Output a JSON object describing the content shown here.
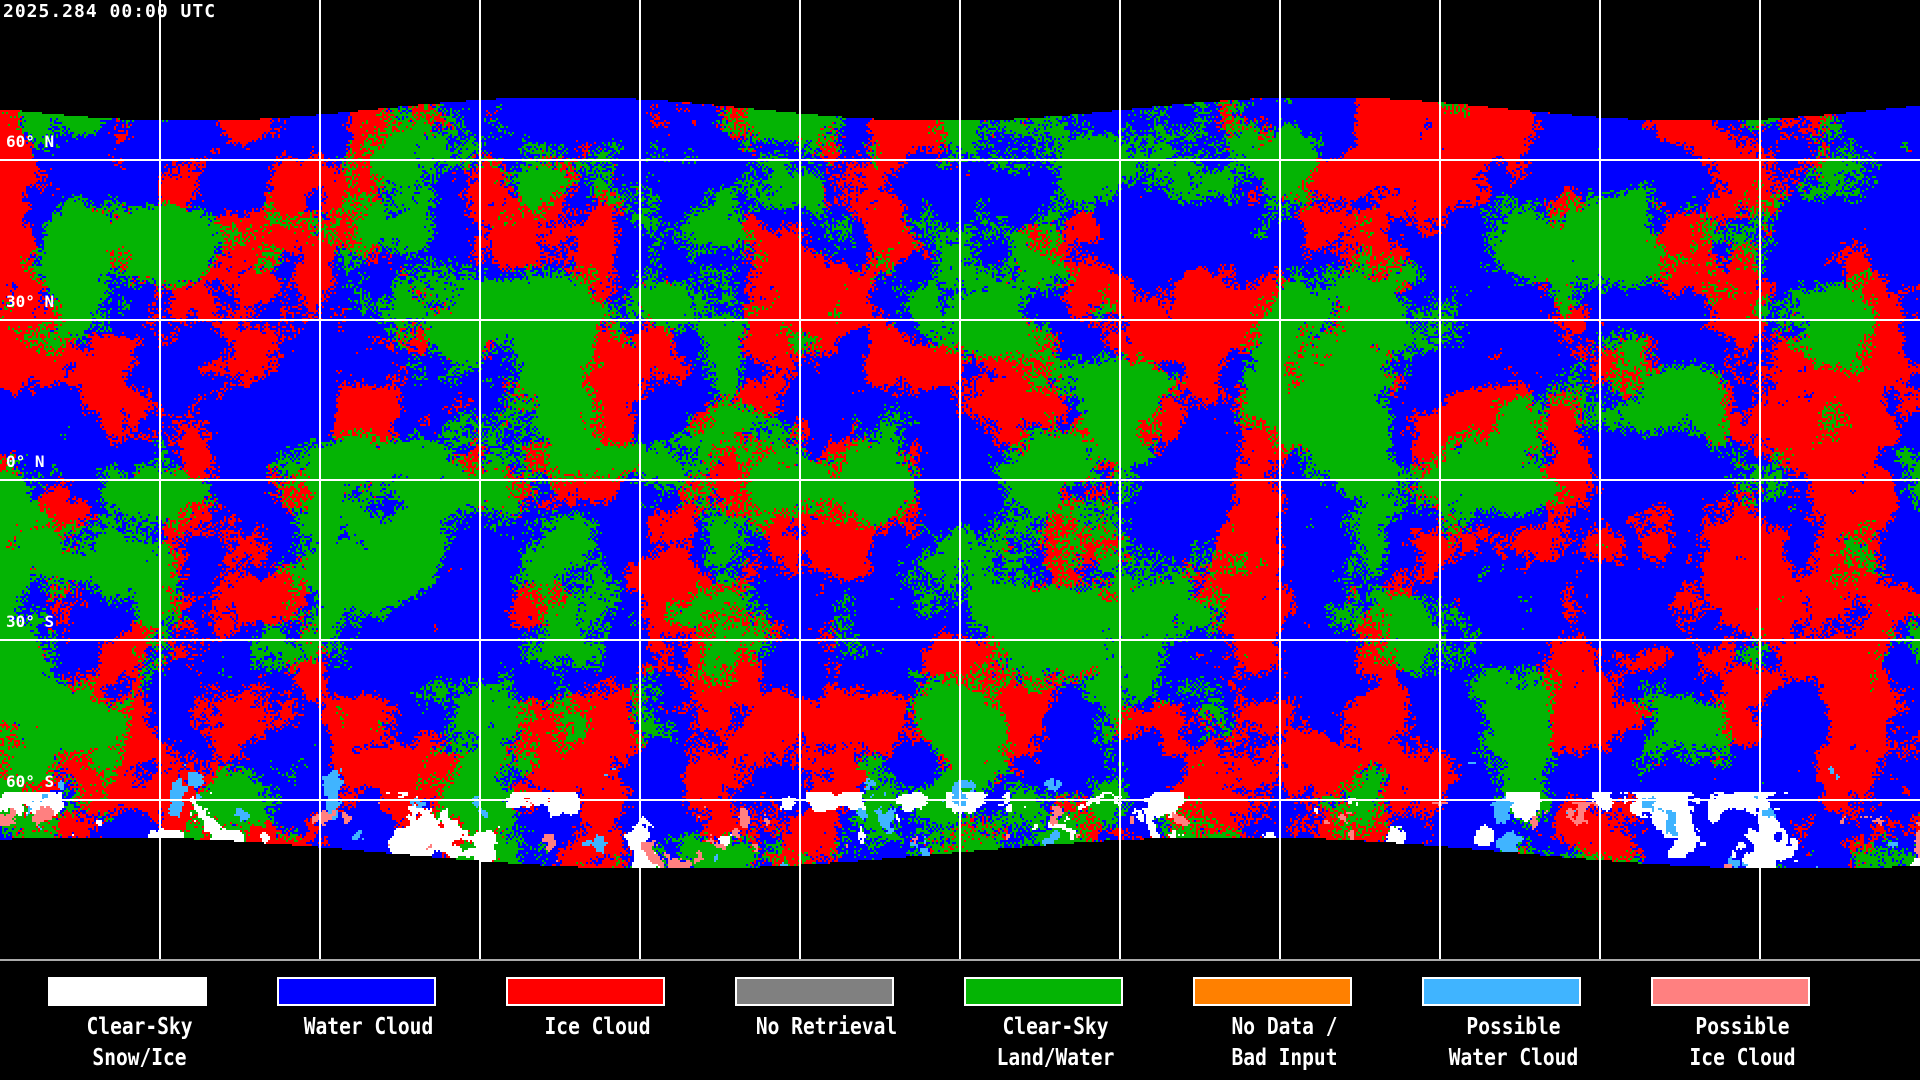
{
  "header": {
    "title": "2025.284 00:00 UTC"
  },
  "map": {
    "projection": "equirectangular",
    "lat_labels": [
      "60° N",
      "30° N",
      "0° N",
      "30° S",
      "60° S"
    ],
    "grid": true
  },
  "legend": {
    "items": [
      {
        "line1": "Clear-Sky",
        "line2": "Snow/Ice",
        "color": "#ffffff"
      },
      {
        "line1": "Water Cloud",
        "line2": "",
        "color": "#0000ff"
      },
      {
        "line1": "Ice Cloud",
        "line2": "",
        "color": "#ff0000"
      },
      {
        "line1": "No Retrieval",
        "line2": "",
        "color": "#808080"
      },
      {
        "line1": "Clear-Sky",
        "line2": "Land/Water",
        "color": "#04b404"
      },
      {
        "line1": "No Data /",
        "line2": "Bad Input",
        "color": "#ff8000"
      },
      {
        "line1": "Possible",
        "line2": "Water Cloud",
        "color": "#40b4ff"
      },
      {
        "line1": "Possible",
        "line2": "Ice Cloud",
        "color": "#ff8080"
      }
    ]
  }
}
